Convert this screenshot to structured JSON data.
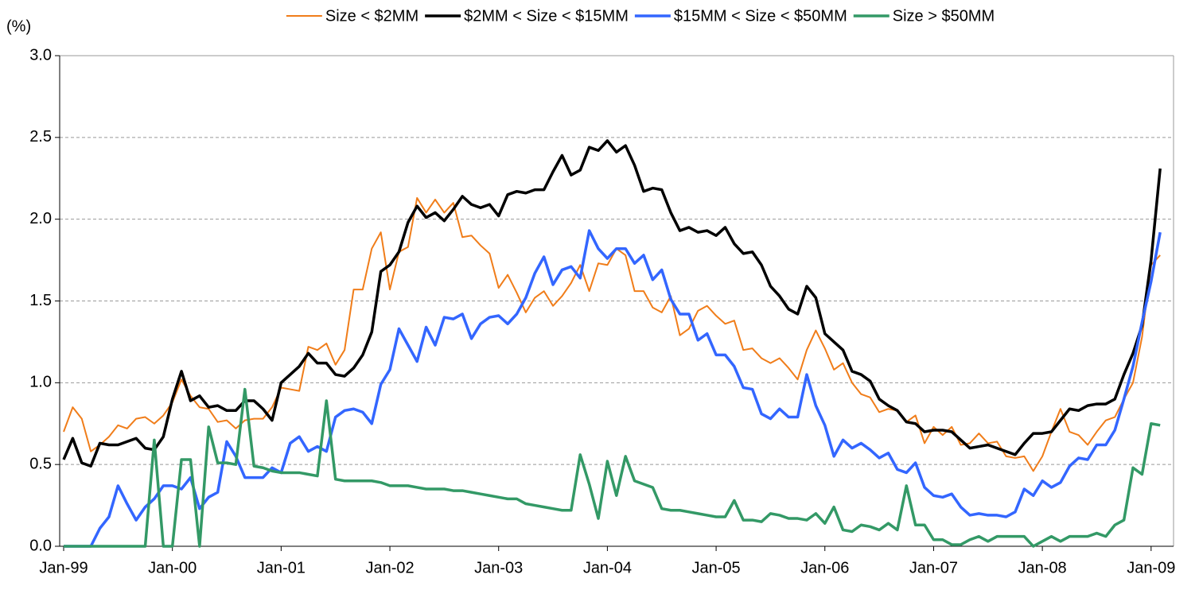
{
  "chart_data": {
    "type": "line",
    "y_label": "(%)",
    "categories": [
      "Jan-99",
      null,
      null,
      null,
      null,
      null,
      null,
      null,
      null,
      null,
      null,
      null,
      "Jan-00",
      null,
      null,
      null,
      null,
      null,
      null,
      null,
      null,
      null,
      null,
      null,
      "Jan-01",
      null,
      null,
      null,
      null,
      null,
      null,
      null,
      null,
      null,
      null,
      null,
      "Jan-02",
      null,
      null,
      null,
      null,
      null,
      null,
      null,
      null,
      null,
      null,
      null,
      "Jan-03",
      null,
      null,
      null,
      null,
      null,
      null,
      null,
      null,
      null,
      null,
      null,
      "Jan-04",
      null,
      null,
      null,
      null,
      null,
      null,
      null,
      null,
      null,
      null,
      null,
      "Jan-05",
      null,
      null,
      null,
      null,
      null,
      null,
      null,
      null,
      null,
      null,
      null,
      "Jan-06",
      null,
      null,
      null,
      null,
      null,
      null,
      null,
      null,
      null,
      null,
      null,
      "Jan-07",
      null,
      null,
      null,
      null,
      null,
      null,
      null,
      null,
      null,
      null,
      null,
      "Jan-08",
      null,
      null,
      null,
      null,
      null,
      null,
      null,
      null,
      null,
      null,
      null,
      "Jan-09",
      null
    ],
    "series": [
      {
        "name": "Size < $2MM",
        "color": "#f07d1a",
        "width": 2,
        "values": [
          0.7,
          0.85,
          0.78,
          0.58,
          0.62,
          0.67,
          0.74,
          0.72,
          0.78,
          0.79,
          0.75,
          0.8,
          0.88,
          1.02,
          0.92,
          0.85,
          0.84,
          0.76,
          0.77,
          0.72,
          0.77,
          0.78,
          0.78,
          0.85,
          0.97,
          0.96,
          0.95,
          1.22,
          1.2,
          1.24,
          1.11,
          1.2,
          1.57,
          1.57,
          1.82,
          1.92,
          1.57,
          1.8,
          1.83,
          2.13,
          2.04,
          2.12,
          2.04,
          2.1,
          1.89,
          1.9,
          1.84,
          1.79,
          1.58,
          1.66,
          1.55,
          1.43,
          1.52,
          1.56,
          1.47,
          1.53,
          1.61,
          1.72,
          1.56,
          1.73,
          1.72,
          1.82,
          1.78,
          1.56,
          1.56,
          1.46,
          1.43,
          1.53,
          1.29,
          1.33,
          1.44,
          1.47,
          1.41,
          1.36,
          1.38,
          1.2,
          1.21,
          1.15,
          1.12,
          1.15,
          1.09,
          1.02,
          1.2,
          1.32,
          1.21,
          1.08,
          1.12,
          1.0,
          0.93,
          0.91,
          0.82,
          0.84,
          0.83,
          0.76,
          0.8,
          0.63,
          0.73,
          0.68,
          0.73,
          0.62,
          0.63,
          0.69,
          0.63,
          0.64,
          0.55,
          0.54,
          0.55,
          0.46,
          0.55,
          0.7,
          0.84,
          0.7,
          0.68,
          0.62,
          0.7,
          0.77,
          0.79,
          0.9,
          1.0,
          1.28,
          1.72,
          1.78
        ]
      },
      {
        "name": "$2MM < Size < $15MM",
        "color": "#000000",
        "width": 3.5,
        "values": [
          0.53,
          0.66,
          0.51,
          0.49,
          0.63,
          0.62,
          0.62,
          0.64,
          0.66,
          0.6,
          0.59,
          0.67,
          0.9,
          1.07,
          0.89,
          0.92,
          0.85,
          0.86,
          0.83,
          0.83,
          0.89,
          0.89,
          0.84,
          0.77,
          1.0,
          1.05,
          1.1,
          1.18,
          1.12,
          1.12,
          1.05,
          1.04,
          1.09,
          1.17,
          1.31,
          1.68,
          1.72,
          1.8,
          1.98,
          2.08,
          2.01,
          2.04,
          1.99,
          2.06,
          2.14,
          2.09,
          2.07,
          2.09,
          2.02,
          2.15,
          2.17,
          2.16,
          2.18,
          2.18,
          2.29,
          2.39,
          2.27,
          2.3,
          2.44,
          2.42,
          2.48,
          2.41,
          2.45,
          2.33,
          2.17,
          2.19,
          2.18,
          2.04,
          1.93,
          1.95,
          1.92,
          1.93,
          1.9,
          1.95,
          1.85,
          1.79,
          1.8,
          1.72,
          1.59,
          1.53,
          1.45,
          1.42,
          1.59,
          1.52,
          1.3,
          1.25,
          1.2,
          1.07,
          1.05,
          1.01,
          0.9,
          0.86,
          0.83,
          0.76,
          0.75,
          0.7,
          0.71,
          0.71,
          0.7,
          0.65,
          0.6,
          0.61,
          0.62,
          0.6,
          0.58,
          0.56,
          0.63,
          0.69,
          0.69,
          0.7,
          0.77,
          0.84,
          0.83,
          0.86,
          0.87,
          0.87,
          0.9,
          1.05,
          1.18,
          1.35,
          1.75,
          2.31
        ]
      },
      {
        "name": "$15MM < Size < $50MM",
        "color": "#3366ff",
        "width": 3.5,
        "values": [
          0.0,
          0.0,
          0.0,
          0.0,
          0.11,
          0.18,
          0.37,
          0.26,
          0.16,
          0.24,
          0.29,
          0.37,
          0.37,
          0.35,
          0.42,
          0.23,
          0.3,
          0.33,
          0.64,
          0.55,
          0.42,
          0.42,
          0.42,
          0.48,
          0.45,
          0.63,
          0.67,
          0.58,
          0.61,
          0.58,
          0.79,
          0.83,
          0.84,
          0.82,
          0.75,
          0.99,
          1.08,
          1.33,
          1.23,
          1.13,
          1.34,
          1.23,
          1.4,
          1.39,
          1.42,
          1.27,
          1.36,
          1.4,
          1.41,
          1.36,
          1.42,
          1.52,
          1.67,
          1.77,
          1.6,
          1.69,
          1.71,
          1.64,
          1.93,
          1.82,
          1.76,
          1.82,
          1.82,
          1.73,
          1.78,
          1.63,
          1.69,
          1.51,
          1.42,
          1.42,
          1.26,
          1.3,
          1.17,
          1.17,
          1.1,
          0.97,
          0.96,
          0.81,
          0.78,
          0.84,
          0.79,
          0.79,
          1.05,
          0.86,
          0.74,
          0.55,
          0.65,
          0.6,
          0.63,
          0.59,
          0.54,
          0.57,
          0.47,
          0.45,
          0.51,
          0.36,
          0.31,
          0.3,
          0.32,
          0.24,
          0.19,
          0.2,
          0.19,
          0.19,
          0.18,
          0.21,
          0.35,
          0.31,
          0.4,
          0.36,
          0.39,
          0.49,
          0.54,
          0.53,
          0.62,
          0.62,
          0.71,
          0.9,
          1.1,
          1.37,
          1.62,
          1.92
        ]
      },
      {
        "name": "Size > $50MM",
        "color": "#339966",
        "width": 3.5,
        "values": [
          0,
          0,
          0,
          0,
          0,
          0,
          0,
          0,
          0,
          0,
          0.65,
          0,
          0.0,
          0.53,
          0.53,
          0.0,
          0.73,
          0.51,
          0.51,
          0.5,
          0.96,
          0.49,
          0.48,
          0.46,
          0.45,
          0.45,
          0.45,
          0.44,
          0.43,
          0.89,
          0.41,
          0.4,
          0.4,
          0.4,
          0.4,
          0.39,
          0.37,
          0.37,
          0.37,
          0.36,
          0.35,
          0.35,
          0.35,
          0.34,
          0.34,
          0.33,
          0.32,
          0.31,
          0.3,
          0.29,
          0.29,
          0.26,
          0.25,
          0.24,
          0.23,
          0.22,
          0.22,
          0.56,
          0.38,
          0.17,
          0.52,
          0.31,
          0.55,
          0.4,
          0.38,
          0.36,
          0.23,
          0.22,
          0.22,
          0.21,
          0.2,
          0.19,
          0.18,
          0.18,
          0.28,
          0.16,
          0.16,
          0.15,
          0.2,
          0.19,
          0.17,
          0.17,
          0.16,
          0.2,
          0.14,
          0.24,
          0.1,
          0.09,
          0.13,
          0.12,
          0.1,
          0.14,
          0.1,
          0.37,
          0.13,
          0.13,
          0.04,
          0.04,
          0.01,
          0.01,
          0.04,
          0.06,
          0.03,
          0.06,
          0.06,
          0.06,
          0.06,
          0.0,
          0.03,
          0.06,
          0.03,
          0.06,
          0.06,
          0.06,
          0.08,
          0.06,
          0.13,
          0.16,
          0.48,
          0.44,
          0.75,
          0.74
        ]
      }
    ],
    "ylim": [
      0,
      3
    ],
    "yticks": [
      {
        "value": 0,
        "label": "0.0"
      },
      0.5,
      {
        "value": 1,
        "label": "1.0"
      },
      1.5,
      {
        "value": 2,
        "label": "2.0"
      },
      2.5,
      {
        "value": 3,
        "label": "3.0"
      }
    ],
    "grid": true,
    "legend": "top"
  }
}
